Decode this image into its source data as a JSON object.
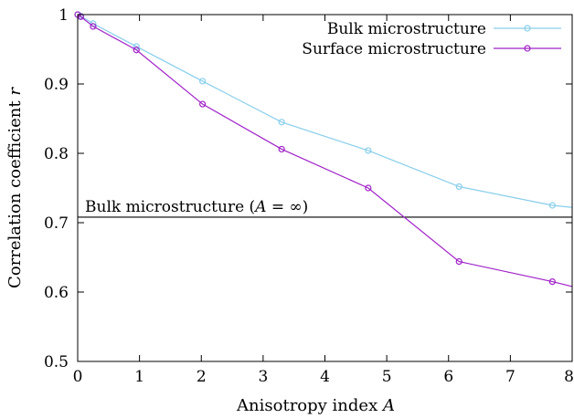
{
  "chart_data": {
    "type": "line",
    "xlabel_text": "Anisotropy index",
    "xlabel_var": "A",
    "ylabel_text": "Correlation coefficient",
    "ylabel_var": "r",
    "xlim": [
      0,
      8
    ],
    "ylim": [
      0.5,
      1.0
    ],
    "xticks": [
      0,
      1,
      2,
      3,
      4,
      5,
      6,
      7,
      8
    ],
    "yticks": [
      0.5,
      0.6,
      0.7,
      0.8,
      0.9,
      1.0
    ],
    "xtick_labels": [
      "0",
      "1",
      "2",
      "3",
      "4",
      "5",
      "6",
      "7",
      "8"
    ],
    "ytick_labels": [
      "0.5",
      "0.6",
      "0.7",
      "0.8",
      "0.9",
      "1"
    ],
    "grid": false,
    "legend_position": "top-right",
    "series": [
      {
        "name": "Bulk microstructure",
        "color": "#87ceeb",
        "marker": "open-circle",
        "x": [
          0.0,
          0.05,
          0.25,
          0.95,
          2.02,
          3.3,
          4.7,
          6.17,
          7.68,
          8.0
        ],
        "y": [
          1.0,
          0.998,
          0.987,
          0.954,
          0.904,
          0.845,
          0.804,
          0.752,
          0.725,
          0.722
        ]
      },
      {
        "name": "Surface microstructure",
        "color": "#a020c8",
        "marker": "open-circle",
        "x": [
          0.0,
          0.05,
          0.25,
          0.95,
          2.02,
          3.3,
          4.7,
          6.17,
          7.68,
          8.0
        ],
        "y": [
          1.0,
          0.997,
          0.983,
          0.949,
          0.871,
          0.806,
          0.75,
          0.644,
          0.615,
          0.608
        ]
      }
    ],
    "reference_line": {
      "y": 0.708,
      "color": "#000000",
      "label_text": "Bulk microstructure (",
      "label_var": "A",
      "label_eq": " = ∞)"
    }
  }
}
